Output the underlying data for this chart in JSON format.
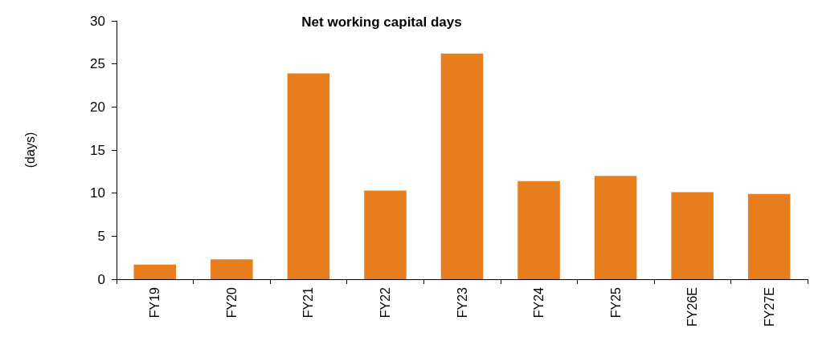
{
  "chart_data": {
    "type": "bar",
    "title": "Net working capital days",
    "ylabel": "(days)",
    "categories": [
      "FY19",
      "FY20",
      "FY21",
      "FY22",
      "FY23",
      "FY24",
      "FY25",
      "FY26E",
      "FY27E"
    ],
    "values": [
      1.7,
      2.3,
      23.9,
      10.3,
      26.2,
      11.4,
      12.0,
      10.1,
      9.9
    ],
    "color": "#e87d1e",
    "ylim": [
      0,
      30
    ],
    "yticks": [
      0,
      5,
      10,
      15,
      20,
      25,
      30
    ],
    "grid": false
  }
}
